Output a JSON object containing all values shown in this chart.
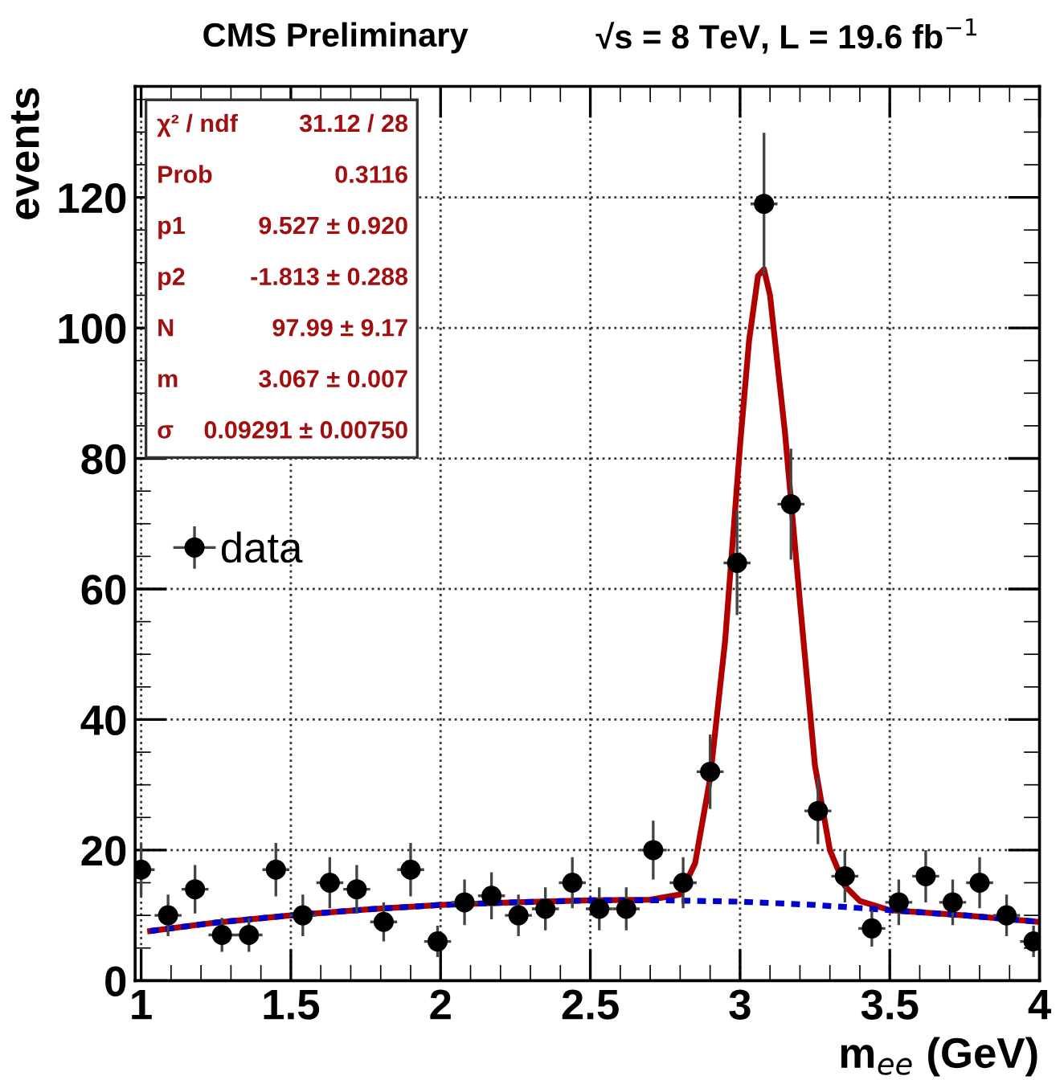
{
  "chart_data": {
    "type": "scatter",
    "title": "CMS Preliminary",
    "subtitle": "√s = 8 TeV, L = 19.6 fb$^{−1}$",
    "xlabel": "m$_{ee}$ (GeV)",
    "ylabel": "events",
    "xlim": [
      0.98,
      4.0
    ],
    "ylim": [
      0,
      137
    ],
    "xticks": [
      1,
      1.5,
      2,
      2.5,
      3,
      3.5,
      4
    ],
    "yticks": [
      0,
      20,
      40,
      60,
      80,
      100,
      120
    ],
    "grid": true,
    "legend": "left",
    "annotations": [
      "χ² / ndf",
      "31.12 / 28",
      "Prob",
      "0.3116",
      "p1",
      "9.527 ± 0.920",
      "p2",
      "-1.813 ± 0.288",
      "N",
      "97.99 ± 9.17",
      "m",
      "3.067 ± 0.007",
      "σ",
      "0.09291 ± 0.00750"
    ],
    "series": [
      {
        "type": "line",
        "color": "#b00000",
        "line_style": "solid",
        "marker": "none",
        "x": [
          1.03,
          1.25,
          1.5,
          1.75,
          2.0,
          2.25,
          2.5,
          2.7,
          2.8,
          2.85,
          2.9,
          2.95,
          3.0,
          3.03,
          3.06,
          3.08,
          3.1,
          3.15,
          3.2,
          3.25,
          3.3,
          3.35,
          3.4,
          3.5,
          3.75,
          4.0
        ],
        "values": [
          7.6,
          8.9,
          10.0,
          10.9,
          11.6,
          12.0,
          12.3,
          12.4,
          13.2,
          18,
          31,
          52,
          82,
          98,
          108,
          109,
          105,
          84,
          58,
          33,
          20,
          14.5,
          12.2,
          10.8,
          10.0,
          9.0
        ]
      },
      {
        "type": "line",
        "color": "#0000cc",
        "line_style": "dashed",
        "marker": "none",
        "x": [
          1.03,
          1.25,
          1.5,
          1.75,
          2.0,
          2.25,
          2.5,
          2.75,
          3.0,
          3.25,
          3.5,
          3.75,
          4.0
        ],
        "values": [
          7.6,
          8.9,
          10.0,
          10.9,
          11.6,
          12.0,
          12.3,
          12.3,
          12.1,
          11.6,
          10.8,
          10.0,
          9.0
        ]
      },
      {
        "name": "data",
        "color": "#000000",
        "marker": "circle",
        "x": [
          1.0,
          1.09,
          1.18,
          1.27,
          1.36,
          1.45,
          1.54,
          1.63,
          1.72,
          1.81,
          1.9,
          1.99,
          2.08,
          2.17,
          2.26,
          2.35,
          2.44,
          2.53,
          2.62,
          2.71,
          2.81,
          2.9,
          2.99,
          3.08,
          3.17,
          3.26,
          3.35,
          3.44,
          3.53,
          3.62,
          3.71,
          3.8,
          3.89,
          3.98
        ],
        "values": [
          17,
          10,
          14,
          7,
          7,
          17,
          10,
          15,
          14,
          9,
          17,
          6,
          12,
          13,
          10,
          11,
          15,
          11,
          11,
          20,
          15,
          32,
          64,
          119,
          73,
          26,
          16,
          8,
          12,
          16,
          12,
          15,
          10,
          6
        ],
        "errors": [
          4.1,
          3.2,
          3.7,
          2.6,
          2.6,
          4.1,
          3.2,
          3.9,
          3.7,
          3.0,
          4.1,
          2.4,
          3.5,
          3.6,
          3.2,
          3.3,
          3.9,
          3.3,
          3.3,
          4.5,
          3.9,
          5.7,
          8.0,
          10.9,
          8.5,
          5.1,
          4.0,
          2.8,
          3.5,
          4.0,
          3.5,
          3.9,
          3.2,
          2.4
        ],
        "xerrors": [
          0.045,
          0.045,
          0.045,
          0.045,
          0.045,
          0.045,
          0.045,
          0.045,
          0.045,
          0.045,
          0.045,
          0.045,
          0.045,
          0.045,
          0.045,
          0.045,
          0.045,
          0.045,
          0.045,
          0.045,
          0.045,
          0.045,
          0.045,
          0.045,
          0.045,
          0.045,
          0.045,
          0.045,
          0.045,
          0.045,
          0.045,
          0.045,
          0.045,
          0.045
        ]
      }
    ]
  }
}
